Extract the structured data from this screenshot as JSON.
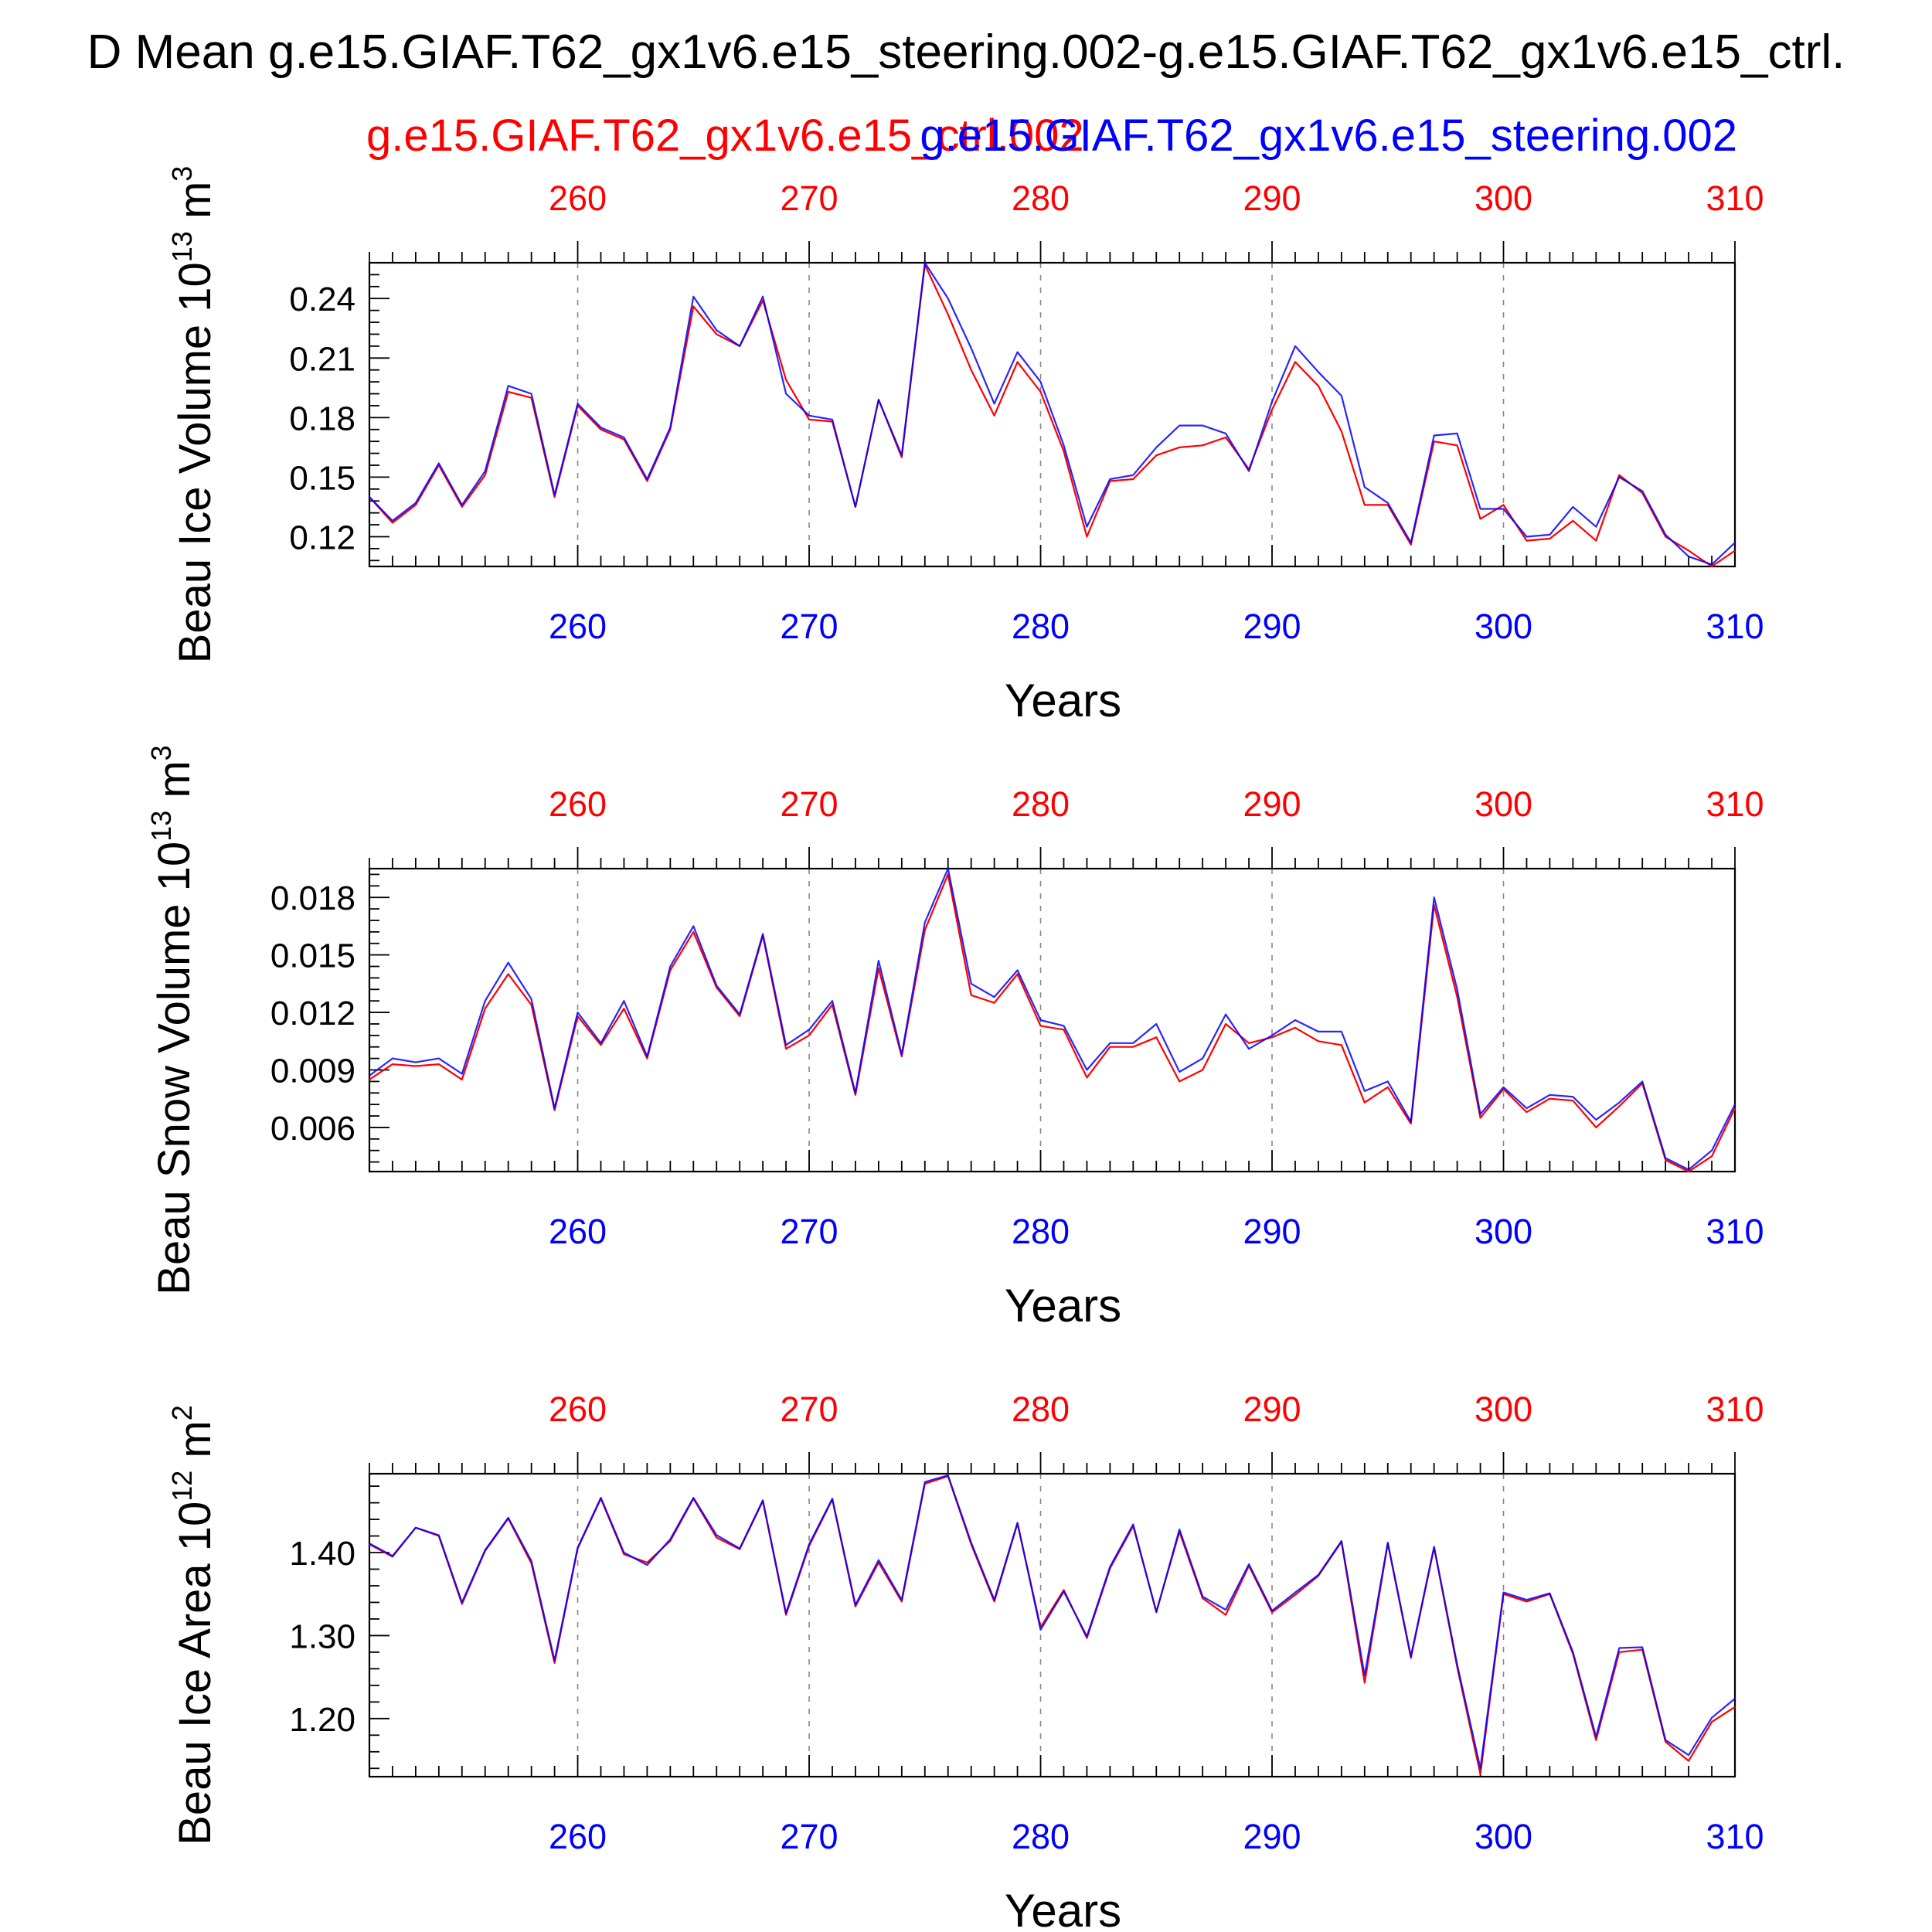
{
  "title": "D Mean g.e15.GIAF.T62_gx1v6.e15_steering.002-g.e15.GIAF.T62_gx1v6.e15_ctrl.",
  "legend": {
    "red_label": "g.e15.GIAF.T62_gx1v6.e15_ctrl.002",
    "blue_label": "g.e15.GIAF.T62_gx1v6.e15_steering.002"
  },
  "colors": {
    "ctrl": "#ff0000",
    "steering": "#0000ff",
    "axis": "#000000",
    "grid": "#888888"
  },
  "chart_data": [
    {
      "type": "line",
      "ylabel_main": "Beau Ice Volume 10",
      "ylabel_exp": "13",
      "ylabel_unit": " m",
      "ylabel_unit_exp": "3",
      "xlabel": "Years",
      "xlim": [
        251,
        310
      ],
      "ylim": [
        0.105,
        0.258
      ],
      "x_ticks": [
        260,
        270,
        280,
        290,
        300,
        310
      ],
      "y_ticks": [
        0.12,
        0.15,
        0.18,
        0.21,
        0.24
      ],
      "y_tick_labels": [
        "0.12",
        "0.15",
        "0.18",
        "0.21",
        "0.24"
      ],
      "grid": "vertical dashed",
      "x": [
        251,
        252,
        253,
        254,
        255,
        256,
        257,
        258,
        259,
        260,
        261,
        262,
        263,
        264,
        265,
        266,
        267,
        268,
        269,
        270,
        271,
        272,
        273,
        274,
        275,
        276,
        277,
        278,
        279,
        280,
        281,
        282,
        283,
        284,
        285,
        286,
        287,
        288,
        289,
        290,
        291,
        292,
        293,
        294,
        295,
        296,
        297,
        298,
        299,
        300,
        301,
        302,
        303,
        304,
        305,
        306,
        307,
        308,
        309,
        310
      ],
      "series": [
        {
          "name": "g.e15.GIAF.T62_gx1v6.e15_ctrl.002",
          "color": "#ff0000",
          "values": [
            0.14,
            0.127,
            0.136,
            0.156,
            0.135,
            0.151,
            0.193,
            0.19,
            0.14,
            0.186,
            0.174,
            0.169,
            0.148,
            0.174,
            0.236,
            0.222,
            0.216,
            0.239,
            0.199,
            0.179,
            0.178,
            0.135,
            0.189,
            0.16,
            0.257,
            0.232,
            0.204,
            0.181,
            0.208,
            0.193,
            0.163,
            0.12,
            0.148,
            0.149,
            0.161,
            0.165,
            0.166,
            0.17,
            0.154,
            0.184,
            0.208,
            0.196,
            0.173,
            0.136,
            0.136,
            0.116,
            0.168,
            0.166,
            0.129,
            0.136,
            0.118,
            0.119,
            0.128,
            0.118,
            0.151,
            0.142,
            0.12,
            0.113,
            0.105,
            0.113
          ]
        },
        {
          "name": "g.e15.GIAF.T62_gx1v6.e15_steering.002",
          "color": "#0000ff",
          "values": [
            0.14,
            0.128,
            0.137,
            0.157,
            0.136,
            0.153,
            0.196,
            0.192,
            0.141,
            0.187,
            0.175,
            0.17,
            0.149,
            0.175,
            0.241,
            0.224,
            0.216,
            0.241,
            0.192,
            0.181,
            0.179,
            0.135,
            0.189,
            0.161,
            0.258,
            0.24,
            0.215,
            0.187,
            0.213,
            0.198,
            0.166,
            0.125,
            0.149,
            0.151,
            0.165,
            0.176,
            0.176,
            0.172,
            0.153,
            0.188,
            0.216,
            0.203,
            0.191,
            0.145,
            0.137,
            0.117,
            0.171,
            0.172,
            0.134,
            0.134,
            0.12,
            0.121,
            0.135,
            0.125,
            0.15,
            0.143,
            0.121,
            0.11,
            0.106,
            0.117
          ]
        }
      ]
    },
    {
      "type": "line",
      "ylabel_main": "Beau Snow Volume 10",
      "ylabel_exp": "13",
      "ylabel_unit": " m",
      "ylabel_unit_exp": "3",
      "xlabel": "Years",
      "xlim": [
        251,
        310
      ],
      "ylim": [
        0.0037,
        0.0195
      ],
      "x_ticks": [
        260,
        270,
        280,
        290,
        300,
        310
      ],
      "y_ticks": [
        0.006,
        0.009,
        0.012,
        0.015,
        0.018
      ],
      "y_tick_labels": [
        "0.006",
        "0.009",
        "0.012",
        "0.015",
        "0.018"
      ],
      "grid": "vertical dashed",
      "x": [
        251,
        252,
        253,
        254,
        255,
        256,
        257,
        258,
        259,
        260,
        261,
        262,
        263,
        264,
        265,
        266,
        267,
        268,
        269,
        270,
        271,
        272,
        273,
        274,
        275,
        276,
        277,
        278,
        279,
        280,
        281,
        282,
        283,
        284,
        285,
        286,
        287,
        288,
        289,
        290,
        291,
        292,
        293,
        294,
        295,
        296,
        297,
        298,
        299,
        300,
        301,
        302,
        303,
        304,
        305,
        306,
        307,
        308,
        309,
        310
      ],
      "series": [
        {
          "name": "g.e15.GIAF.T62_gx1v6.e15_ctrl.002",
          "color": "#ff0000",
          "values": [
            0.0085,
            0.0093,
            0.0092,
            0.0093,
            0.0085,
            0.0122,
            0.014,
            0.0124,
            0.0069,
            0.0118,
            0.0103,
            0.0122,
            0.0096,
            0.0142,
            0.0162,
            0.0133,
            0.0118,
            0.016,
            0.0101,
            0.0108,
            0.0124,
            0.0077,
            0.0143,
            0.0097,
            0.0163,
            0.0192,
            0.0129,
            0.0125,
            0.014,
            0.0113,
            0.0111,
            0.0086,
            0.0102,
            0.0102,
            0.0107,
            0.0084,
            0.009,
            0.0114,
            0.0104,
            0.0107,
            0.0112,
            0.0105,
            0.0103,
            0.0073,
            0.0081,
            0.0062,
            0.0176,
            0.0128,
            0.0065,
            0.008,
            0.0068,
            0.0075,
            0.0074,
            0.006,
            0.0071,
            0.0083,
            0.0043,
            0.0037,
            0.0045,
            0.007
          ]
        },
        {
          "name": "g.e15.GIAF.T62_gx1v6.e15_steering.002",
          "color": "#0000ff",
          "values": [
            0.0087,
            0.0096,
            0.0094,
            0.0096,
            0.0088,
            0.0126,
            0.0146,
            0.0127,
            0.007,
            0.012,
            0.0104,
            0.0126,
            0.0097,
            0.0144,
            0.0165,
            0.0134,
            0.0119,
            0.0161,
            0.0103,
            0.0111,
            0.0126,
            0.0078,
            0.0147,
            0.0098,
            0.0167,
            0.0195,
            0.0135,
            0.0128,
            0.0142,
            0.0116,
            0.0113,
            0.009,
            0.0104,
            0.0104,
            0.0114,
            0.0089,
            0.0096,
            0.0119,
            0.0101,
            0.0108,
            0.0116,
            0.011,
            0.011,
            0.0079,
            0.0084,
            0.0063,
            0.018,
            0.0132,
            0.0067,
            0.0081,
            0.007,
            0.0077,
            0.0076,
            0.0064,
            0.0073,
            0.0084,
            0.0044,
            0.0038,
            0.0048,
            0.0072
          ]
        }
      ]
    },
    {
      "type": "line",
      "ylabel_main": "Beau Ice Area 10",
      "ylabel_exp": "12",
      "ylabel_unit": " m",
      "ylabel_unit_exp": "2",
      "xlabel": "Years",
      "xlim": [
        251,
        310
      ],
      "ylim": [
        1.13,
        1.495
      ],
      "x_ticks": [
        260,
        270,
        280,
        290,
        300,
        310
      ],
      "y_ticks": [
        1.2,
        1.3,
        1.4
      ],
      "y_tick_labels": [
        "1.20",
        "1.30",
        "1.40"
      ],
      "grid": "vertical dashed",
      "x": [
        251,
        252,
        253,
        254,
        255,
        256,
        257,
        258,
        259,
        260,
        261,
        262,
        263,
        264,
        265,
        266,
        267,
        268,
        269,
        270,
        271,
        272,
        273,
        274,
        275,
        276,
        277,
        278,
        279,
        280,
        281,
        282,
        283,
        284,
        285,
        286,
        287,
        288,
        289,
        290,
        291,
        292,
        293,
        294,
        295,
        296,
        297,
        298,
        299,
        300,
        301,
        302,
        303,
        304,
        305,
        306,
        307,
        308,
        309,
        310
      ],
      "series": [
        {
          "name": "g.e15.GIAF.T62_gx1v6.e15_ctrl.002",
          "color": "#ff0000",
          "values": [
            1.41,
            1.395,
            1.43,
            1.42,
            1.338,
            1.402,
            1.441,
            1.387,
            1.267,
            1.405,
            1.465,
            1.398,
            1.388,
            1.414,
            1.465,
            1.418,
            1.404,
            1.462,
            1.325,
            1.408,
            1.464,
            1.335,
            1.388,
            1.341,
            1.483,
            1.492,
            1.41,
            1.341,
            1.435,
            1.31,
            1.355,
            1.297,
            1.381,
            1.432,
            1.329,
            1.425,
            1.345,
            1.325,
            1.384,
            1.328,
            1.349,
            1.372,
            1.413,
            1.243,
            1.411,
            1.273,
            1.406,
            1.262,
            1.133,
            1.35,
            1.341,
            1.35,
            1.278,
            1.174,
            1.28,
            1.283,
            1.172,
            1.149,
            1.196,
            1.214
          ]
        },
        {
          "name": "g.e15.GIAF.T62_gx1v6.e15_steering.002",
          "color": "#0000ff",
          "values": [
            1.411,
            1.396,
            1.43,
            1.421,
            1.34,
            1.403,
            1.442,
            1.39,
            1.27,
            1.406,
            1.466,
            1.4,
            1.385,
            1.416,
            1.466,
            1.421,
            1.405,
            1.463,
            1.327,
            1.41,
            1.465,
            1.337,
            1.391,
            1.343,
            1.485,
            1.493,
            1.412,
            1.343,
            1.436,
            1.307,
            1.353,
            1.299,
            1.383,
            1.434,
            1.328,
            1.428,
            1.347,
            1.331,
            1.386,
            1.33,
            1.352,
            1.373,
            1.414,
            1.252,
            1.412,
            1.275,
            1.407,
            1.265,
            1.14,
            1.352,
            1.343,
            1.351,
            1.28,
            1.178,
            1.285,
            1.286,
            1.174,
            1.156,
            1.201,
            1.224
          ]
        }
      ]
    }
  ]
}
